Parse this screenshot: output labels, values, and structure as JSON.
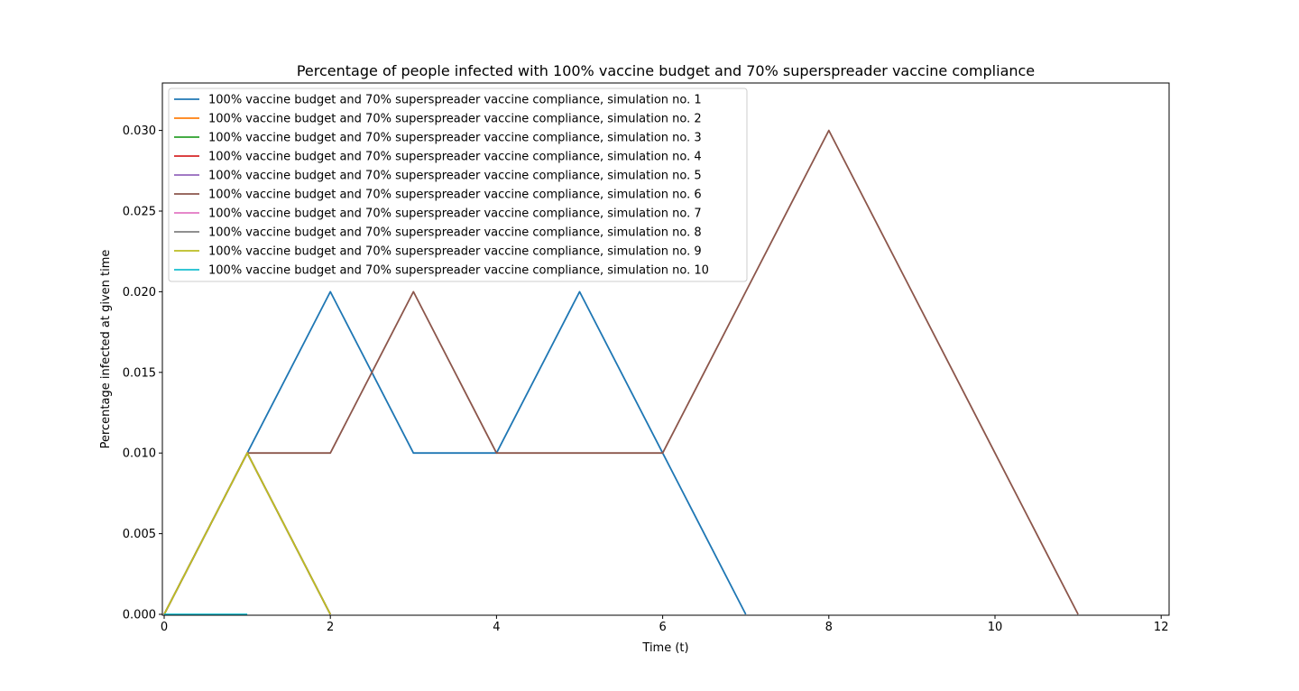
{
  "chart_data": {
    "type": "line",
    "title": "Percentage of people infected with 100% vaccine budget and 70% superspreader vaccine compliance",
    "xlabel": "Time (t)",
    "ylabel": "Percentage infected at given time",
    "xlim": [
      0,
      12.1
    ],
    "ylim": [
      0,
      0.033
    ],
    "xticks": [
      0,
      2,
      4,
      6,
      8,
      10,
      12
    ],
    "xtick_labels": [
      "0",
      "2",
      "4",
      "6",
      "8",
      "10",
      "12"
    ],
    "yticks": [
      0,
      0.005,
      0.01,
      0.015,
      0.02,
      0.025,
      0.03
    ],
    "ytick_labels": [
      "0.000",
      "0.005",
      "0.010",
      "0.015",
      "0.020",
      "0.025",
      "0.030"
    ],
    "grid": false,
    "legend_position": "top-left",
    "series": [
      {
        "name": "100% vaccine budget and 70% superspreader vaccine compliance, simulation no. 1",
        "color": "#1f77b4",
        "x": [
          0,
          1,
          2,
          3,
          4,
          5,
          6,
          7
        ],
        "y": [
          0,
          0.01,
          0.02,
          0.01,
          0.01,
          0.02,
          0.01,
          0
        ]
      },
      {
        "name": "100% vaccine budget and 70% superspreader vaccine compliance, simulation no. 2",
        "color": "#ff7f0e",
        "x": [
          0,
          1,
          2
        ],
        "y": [
          0,
          0.01,
          0
        ]
      },
      {
        "name": "100% vaccine budget and 70% superspreader vaccine compliance, simulation no. 3",
        "color": "#2ca02c",
        "x": [
          0,
          1,
          2
        ],
        "y": [
          0,
          0.01,
          0
        ]
      },
      {
        "name": "100% vaccine budget and 70% superspreader vaccine compliance, simulation no. 4",
        "color": "#d62728",
        "x": [
          0,
          1,
          2
        ],
        "y": [
          0,
          0.01,
          0
        ]
      },
      {
        "name": "100% vaccine budget and 70% superspreader vaccine compliance, simulation no. 5",
        "color": "#9467bd",
        "x": [
          0,
          1,
          2
        ],
        "y": [
          0,
          0.01,
          0
        ]
      },
      {
        "name": "100% vaccine budget and 70% superspreader vaccine compliance, simulation no. 6",
        "color": "#8c564b",
        "x": [
          0,
          1,
          2,
          3,
          4,
          5,
          6,
          7,
          8,
          9,
          10,
          11
        ],
        "y": [
          0,
          0.01,
          0.01,
          0.02,
          0.01,
          0.01,
          0.01,
          0.02,
          0.03,
          0.02,
          0.01,
          0
        ]
      },
      {
        "name": "100% vaccine budget and 70% superspreader vaccine compliance, simulation no. 7",
        "color": "#e377c2",
        "x": [
          0,
          1,
          2
        ],
        "y": [
          0,
          0.01,
          0
        ]
      },
      {
        "name": "100% vaccine budget and 70% superspreader vaccine compliance, simulation no. 8",
        "color": "#7f7f7f",
        "x": [
          0,
          1,
          2
        ],
        "y": [
          0,
          0.01,
          0
        ]
      },
      {
        "name": "100% vaccine budget and 70% superspreader vaccine compliance, simulation no. 9",
        "color": "#bcbd22",
        "x": [
          0,
          1,
          2
        ],
        "y": [
          0,
          0.01,
          0
        ]
      },
      {
        "name": "100% vaccine budget and 70% superspreader vaccine compliance, simulation no. 10",
        "color": "#17becf",
        "x": [
          0,
          1
        ],
        "y": [
          0,
          0
        ]
      }
    ]
  }
}
